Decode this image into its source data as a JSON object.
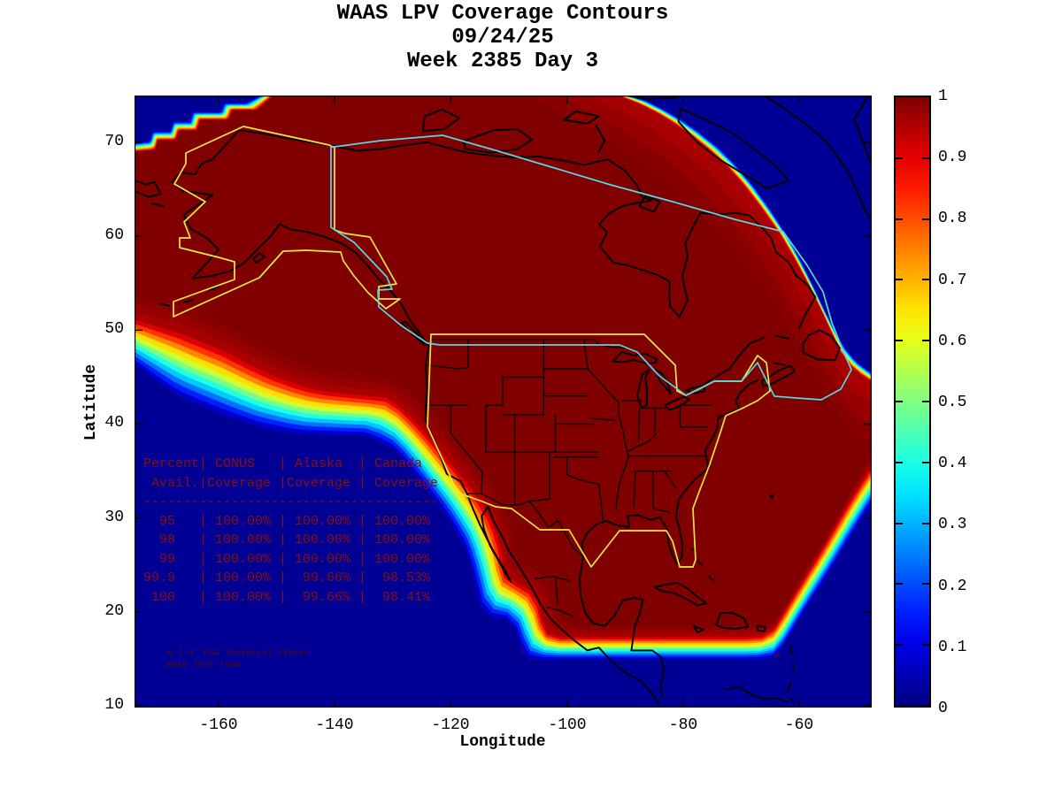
{
  "title": {
    "line1": "WAAS LPV Coverage Contours",
    "line2": "09/24/25",
    "line3": "Week 2385 Day 3"
  },
  "axes": {
    "x": {
      "label": "Longitude",
      "ticks": [
        "-160",
        "-140",
        "-120",
        "-100",
        "-80",
        "-60"
      ]
    },
    "y": {
      "label": "Latitude",
      "ticks": [
        "70",
        "60",
        "50",
        "40",
        "30",
        "20",
        "10"
      ]
    }
  },
  "colorbar": {
    "min": 0,
    "max": 1,
    "colormap": "jet",
    "ticks": [
      "1",
      "0.9",
      "0.8",
      "0.7",
      "0.6",
      "0.5",
      "0.4",
      "0.3",
      "0.2",
      "0.1",
      "0"
    ]
  },
  "coverage_table": {
    "lines": [
      "Percent| CONUS   | Alaska  | Canada",
      " Avail.|Coverage |Coverage | Coverage",
      "--------------------------------------",
      "  95   | 100.00% | 100.00% | 100.00%",
      "  98   | 100.00% | 100.00% | 100.00%",
      "  99   | 100.00% | 100.00% | 100.00%",
      "99.9   | 100.00% |  99.66% |  98.53%",
      " 100   | 100.00% |  99.66% |  98.41%"
    ]
  },
  "credit": {
    "line1": "W.J.H. FAA Technical Center",
    "line2": "WAAS Test Team"
  },
  "colors": {
    "high_coverage_fill": "#800000",
    "ocean_fill": "#000094",
    "conus_alaska_boundary": "#f4e83e",
    "canada_boundary": "#55d8e6",
    "coastline": "#000000",
    "table_text": "#8b0d0d",
    "credit_text": "#5a0808"
  },
  "chart_data": {
    "type": "heatmap",
    "subtype": "filled-contour coverage map",
    "title": "WAAS LPV Coverage Contours",
    "date": "09/24/25",
    "week": "2385",
    "day": "3",
    "xlabel": "Longitude",
    "ylabel": "Latitude",
    "xlim": [
      -175,
      -47
    ],
    "ylim": [
      10,
      75
    ],
    "x_ticks": [
      -160,
      -140,
      -120,
      -100,
      -80,
      -60
    ],
    "y_ticks": [
      70,
      60,
      50,
      40,
      30,
      20,
      10
    ],
    "colorbar": {
      "min": 0,
      "max": 1,
      "ticks": [
        1,
        0.9,
        0.8,
        0.7,
        0.6,
        0.5,
        0.4,
        0.3,
        0.2,
        0.1,
        0
      ],
      "colormap": "jet",
      "position": "right"
    },
    "contour_summary": {
      "high_coverage_value": 1,
      "high_coverage_region": "North America (CONUS, Alaska, Canada, Mexico, Caribbean)",
      "low_coverage_value": 0,
      "low_coverage_regions": [
        "Pacific Ocean (southwest corner)",
        "Atlantic Ocean (southeast corner)",
        "Arctic/North Atlantic (northeast corner)",
        "small northwest corner"
      ]
    },
    "boundary_overlays": [
      {
        "name": "CONUS service volume",
        "color": "#f4e83e"
      },
      {
        "name": "Alaska service volume",
        "color": "#f4e83e"
      },
      {
        "name": "Canada service volume",
        "color": "#55d8e6"
      }
    ],
    "coverage_table": {
      "columns": [
        "Percent Avail.",
        "CONUS Coverage",
        "Alaska Coverage",
        "Canada Coverage"
      ],
      "rows": [
        [
          "95",
          "100.00%",
          "100.00%",
          "100.00%"
        ],
        [
          "98",
          "100.00%",
          "100.00%",
          "100.00%"
        ],
        [
          "99",
          "100.00%",
          "100.00%",
          "100.00%"
        ],
        [
          "99.9",
          "100.00%",
          "99.66%",
          "98.53%"
        ],
        [
          "100",
          "100.00%",
          "99.66%",
          "98.41%"
        ]
      ]
    }
  }
}
